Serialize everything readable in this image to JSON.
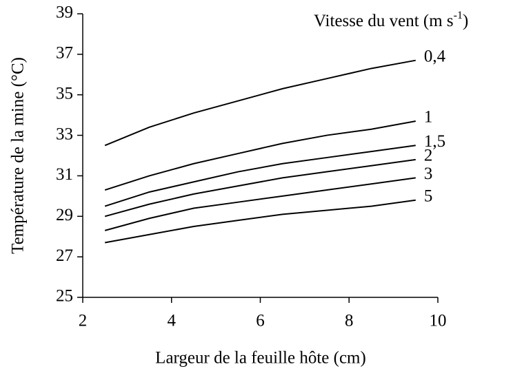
{
  "chart_data": {
    "type": "line",
    "legend_title": {
      "text": "Vitesse du vent (m s",
      "superscript": "-1",
      "close": ")"
    },
    "xlabel": "Largeur de la feuille hôte (cm)",
    "ylabel": "Température de la mine (°C)",
    "x": [
      2.5,
      3.5,
      4.5,
      5.5,
      6.5,
      7.5,
      8.5,
      9.5
    ],
    "series": [
      {
        "name": "0,4",
        "color": "#000000",
        "values": [
          32.5,
          33.4,
          34.1,
          34.7,
          35.3,
          35.8,
          36.3,
          36.7
        ]
      },
      {
        "name": "1",
        "color": "#000000",
        "values": [
          30.3,
          31.0,
          31.6,
          32.1,
          32.6,
          33.0,
          33.3,
          33.7
        ]
      },
      {
        "name": "1,5",
        "color": "#000000",
        "values": [
          29.5,
          30.2,
          30.7,
          31.2,
          31.6,
          31.9,
          32.2,
          32.5
        ]
      },
      {
        "name": "2",
        "color": "#000000",
        "values": [
          29.0,
          29.6,
          30.1,
          30.5,
          30.9,
          31.2,
          31.5,
          31.8
        ]
      },
      {
        "name": "3",
        "color": "#000000",
        "values": [
          28.3,
          28.9,
          29.4,
          29.7,
          30.0,
          30.3,
          30.6,
          30.9
        ]
      },
      {
        "name": "5",
        "color": "#000000",
        "values": [
          27.7,
          28.1,
          28.5,
          28.8,
          29.1,
          29.3,
          29.5,
          29.8
        ]
      }
    ],
    "xlim": [
      2,
      10
    ],
    "xticks": [
      2,
      4,
      6,
      8,
      10
    ],
    "ylim": [
      25,
      39
    ],
    "yticks": [
      25,
      27,
      29,
      31,
      33,
      35,
      37,
      39
    ],
    "grid": false
  }
}
